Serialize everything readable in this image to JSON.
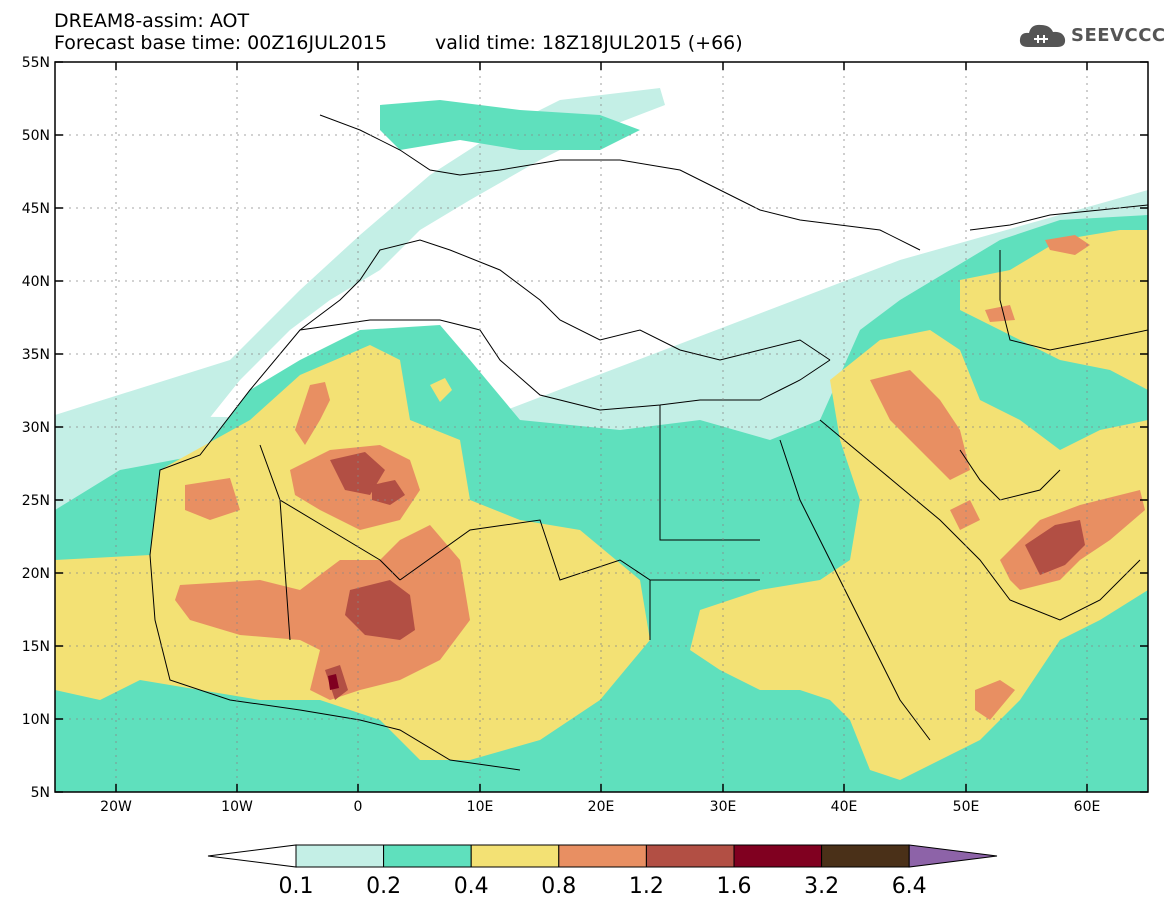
{
  "header": {
    "model_line": "DREAM8-assim: AOT",
    "base_time": "Forecast base time: 00Z16JUL2015",
    "valid_time": "valid time: 18Z18JUL2015 (+66)"
  },
  "logo": {
    "text": "SEEVCCC",
    "icon": "cloud-icon"
  },
  "map": {
    "lon_range": [
      -25,
      65
    ],
    "lat_range": [
      5,
      55
    ],
    "lat_labels": [
      "55N",
      "50N",
      "45N",
      "40N",
      "35N",
      "30N",
      "25N",
      "20N",
      "15N",
      "10N",
      "5N"
    ],
    "lon_labels": [
      "20W",
      "10W",
      "0",
      "10E",
      "20E",
      "30E",
      "40E",
      "50E",
      "60E"
    ]
  },
  "legend": {
    "colors": [
      "#c4efe6",
      "#5fe0bd",
      "#f3e174",
      "#e88f62",
      "#b24f44",
      "#800020",
      "#4a3018"
    ],
    "under_color": "#ffffff",
    "over_color": "#8d63a8",
    "labels": [
      "0.1",
      "0.2",
      "0.4",
      "0.8",
      "1.2",
      "1.6",
      "3.2",
      "6.4"
    ]
  }
}
